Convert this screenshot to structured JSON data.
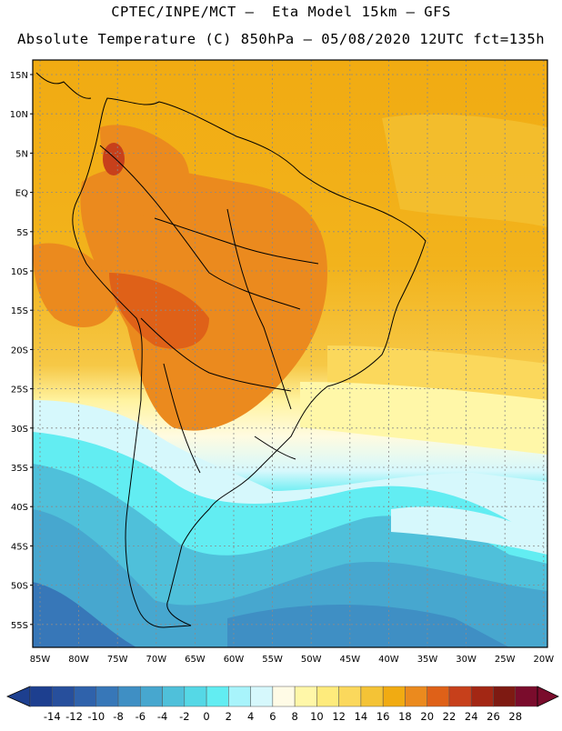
{
  "header": {
    "line1": "CPTEC/INPE/MCT –  Eta Model 15km – GFS",
    "line2": "Absolute Temperature (C) 850hPa – 05/08/2020 12UTC fct=135h"
  },
  "axes": {
    "lat_labels": [
      "15N",
      "10N",
      "5N",
      "EQ",
      "5S",
      "10S",
      "15S",
      "20S",
      "25S",
      "30S",
      "35S",
      "40S",
      "45S",
      "50S",
      "55S"
    ],
    "lon_labels": [
      "85W",
      "80W",
      "75W",
      "70W",
      "65W",
      "60W",
      "55W",
      "50W",
      "45W",
      "40W",
      "35W",
      "30W",
      "25W",
      "20W"
    ]
  },
  "colorbar": {
    "labels": [
      "-14",
      "-12",
      "-10",
      "-8",
      "-6",
      "-4",
      "-2",
      "0",
      "2",
      "4",
      "6",
      "8",
      "10",
      "12",
      "14",
      "16",
      "18",
      "20",
      "22",
      "24",
      "26",
      "28"
    ],
    "colors": [
      "#1d3f8f",
      "#274f9c",
      "#2f62ab",
      "#3777b8",
      "#3f8fc4",
      "#47a7cf",
      "#4fc0da",
      "#55d8e6",
      "#62edf2",
      "#a8f4fb",
      "#d6f8fc",
      "#fffbe6",
      "#fff7a8",
      "#feeb7c",
      "#fbd85c",
      "#f4c336",
      "#f1ab12",
      "#eb8a1e",
      "#df6118",
      "#c7401b",
      "#a32714",
      "#7e1a12",
      "#7a0c2c"
    ]
  }
}
